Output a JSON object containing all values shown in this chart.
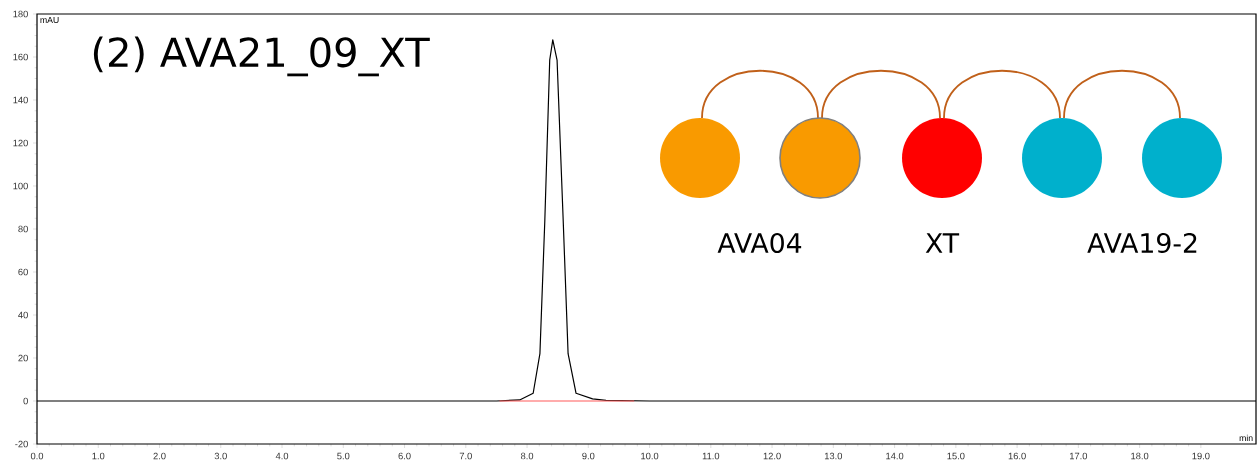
{
  "chart_data": {
    "type": "line",
    "title": "(2) AVA21_09_XT",
    "xlabel": "min",
    "ylabel": "mAU",
    "annotations": [
      "AVA04",
      "XT",
      "AVA19-2"
    ],
    "xlim": [
      0,
      19.9
    ],
    "ylim": [
      -20,
      180
    ],
    "xticks": [
      {
        "value": 0,
        "label": "0.0"
      },
      {
        "value": 1,
        "label": "1.0"
      },
      {
        "value": 2,
        "label": "2.0"
      },
      {
        "value": 3,
        "label": "3.0"
      },
      {
        "value": 4,
        "label": "4.0"
      },
      {
        "value": 5,
        "label": "5.0"
      },
      {
        "value": 6,
        "label": "6.0"
      },
      {
        "value": 7,
        "label": "7.0"
      },
      {
        "value": 8,
        "label": "8.0"
      },
      {
        "value": 9,
        "label": "9.0"
      },
      {
        "value": 10,
        "label": "10.0"
      },
      {
        "value": 11,
        "label": "11.0"
      },
      {
        "value": 12,
        "label": "12.0"
      },
      {
        "value": 13,
        "label": "13.0"
      },
      {
        "value": 14,
        "label": "14.0"
      },
      {
        "value": 15,
        "label": "15.0"
      },
      {
        "value": 16,
        "label": "16.0"
      },
      {
        "value": 17,
        "label": "17.0"
      },
      {
        "value": 18,
        "label": "18.0"
      },
      {
        "value": 19,
        "label": "19.0"
      }
    ],
    "yticks": [
      -20,
      0,
      20,
      40,
      60,
      80,
      100,
      120,
      140,
      160,
      180
    ],
    "marker": "none",
    "series": [
      {
        "color": "#000000",
        "x": [
          0,
          1,
          2,
          3,
          4,
          5,
          6,
          7,
          7.5,
          7.88,
          8.1,
          8.21,
          8.29,
          8.37,
          8.42,
          8.49,
          8.59,
          8.67,
          8.8,
          9.07,
          9.29,
          10,
          11,
          12,
          13,
          14,
          15,
          16,
          17,
          18,
          19,
          19.9
        ],
        "values": [
          0,
          0,
          0,
          0,
          0,
          0,
          0,
          0,
          0,
          0.5,
          3.6,
          22,
          84,
          158.6,
          168,
          158.6,
          84,
          22,
          3.6,
          1,
          0.3,
          0,
          0,
          0,
          0,
          0,
          0,
          0,
          0,
          0,
          0,
          0
        ]
      },
      {
        "color": "#ff5a5a",
        "x": [
          7.55,
          9.75
        ],
        "values": [
          0,
          0
        ]
      }
    ]
  }
}
